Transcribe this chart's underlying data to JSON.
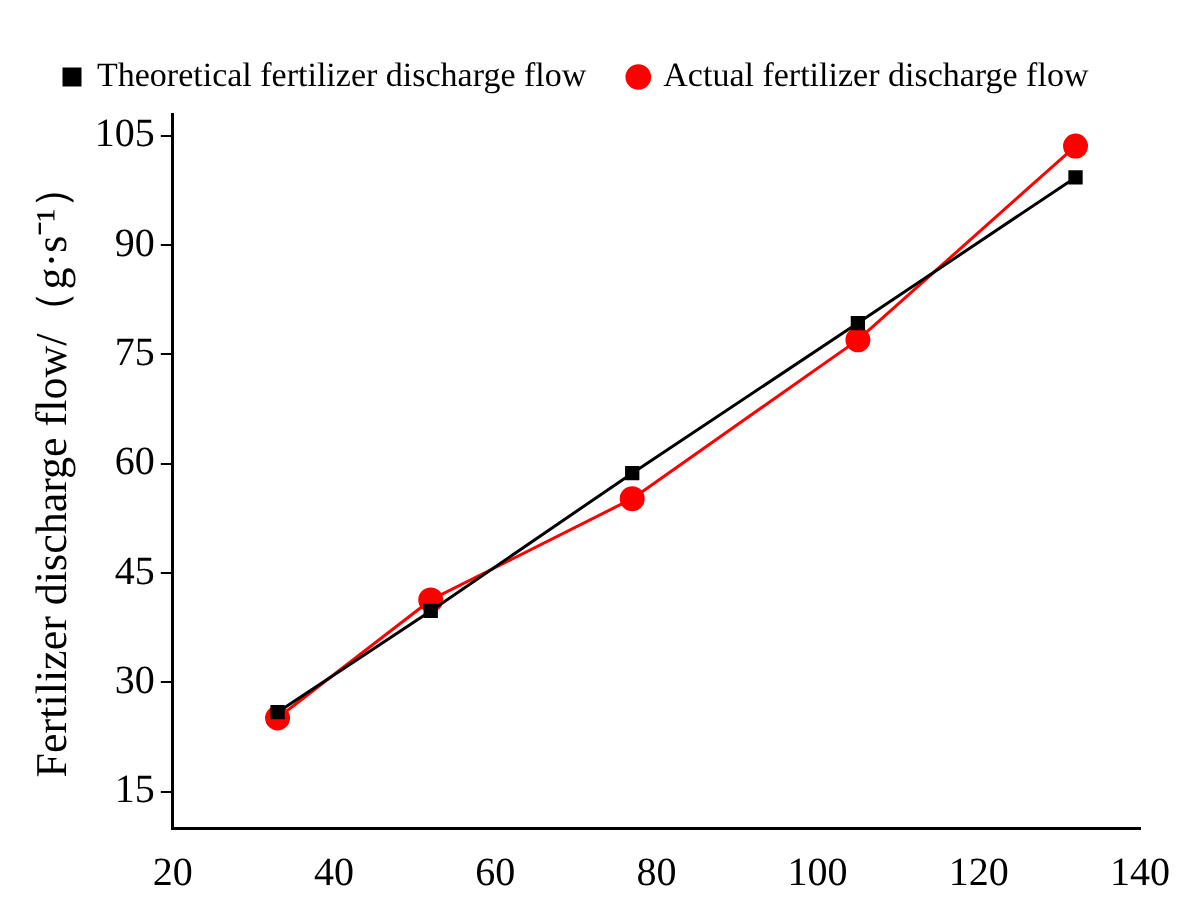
{
  "chart_data": {
    "type": "line",
    "ylabel": "Fertilizer discharge flow/（g·s⁻¹）",
    "x": [
      33,
      52,
      77,
      105,
      132
    ],
    "series": [
      {
        "name": "Theoretical fertilizer discharge flow",
        "color": "#000000",
        "marker": "square",
        "values": [
          25.9,
          39.8,
          58.7,
          79.3,
          99.3
        ]
      },
      {
        "name": "Actual fertilizer discharge flow",
        "color": "#ff0000",
        "marker": "circle",
        "values": [
          25.1,
          41.3,
          55.2,
          77.0,
          103.6
        ]
      }
    ],
    "xlim": [
      20,
      140
    ],
    "xticks": [
      20,
      40,
      60,
      80,
      100,
      120,
      140
    ],
    "ylim": [
      10,
      108
    ],
    "yticks": [
      15,
      30,
      45,
      60,
      75,
      90,
      105
    ],
    "grid": false,
    "legend": "top left",
    "line_style": "solid"
  }
}
